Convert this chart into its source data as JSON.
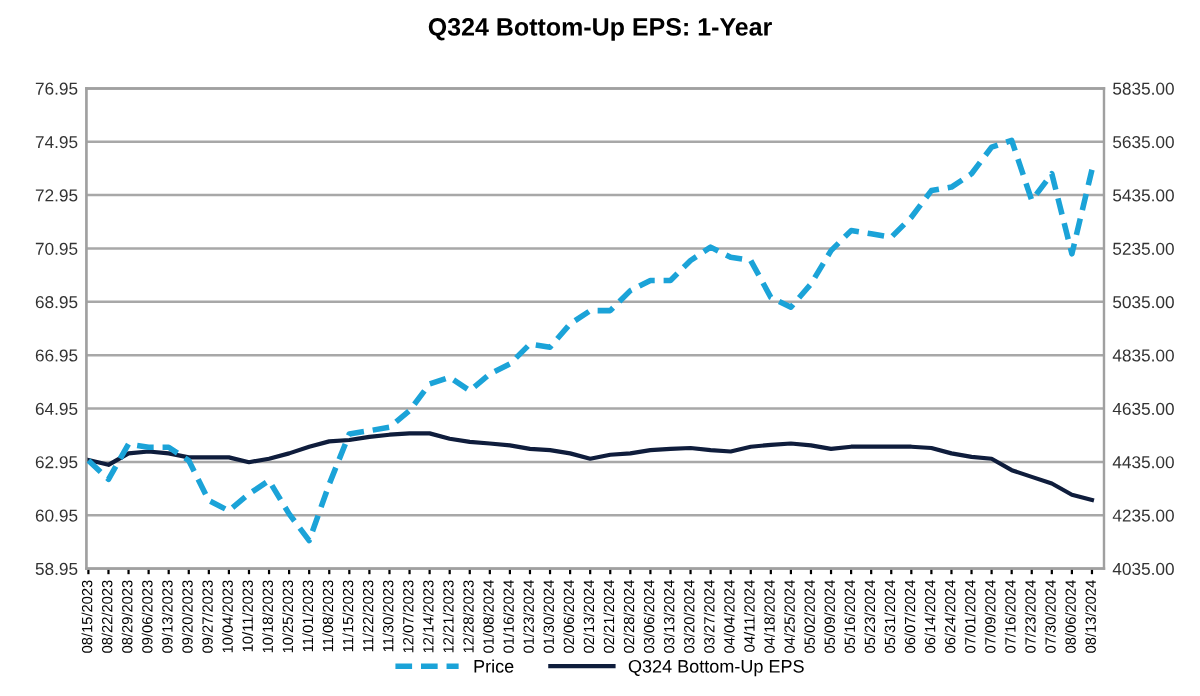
{
  "chart_data": {
    "type": "line",
    "title": "Q324 Bottom-Up EPS: 1-Year",
    "categories": [
      "08/15/2023",
      "08/22/2023",
      "08/29/2023",
      "09/06/2023",
      "09/13/2023",
      "09/20/2023",
      "09/27/2023",
      "10/04/2023",
      "10/11/2023",
      "10/18/2023",
      "10/25/2023",
      "11/01/2023",
      "11/08/2023",
      "11/15/2023",
      "11/22/2023",
      "11/30/2023",
      "12/07/2023",
      "12/14/2023",
      "12/21/2023",
      "12/28/2023",
      "01/08/2024",
      "01/16/2024",
      "01/23/2024",
      "01/30/2024",
      "02/06/2024",
      "02/13/2024",
      "02/21/2024",
      "02/28/2024",
      "03/06/2024",
      "03/13/2024",
      "03/20/2024",
      "03/27/2024",
      "04/04/2024",
      "04/11/2024",
      "04/18/2024",
      "04/25/2024",
      "05/02/2024",
      "05/09/2024",
      "05/16/2024",
      "05/23/2024",
      "05/31/2024",
      "06/07/2024",
      "06/14/2024",
      "06/24/2024",
      "07/01/2024",
      "07/09/2024",
      "07/16/2024",
      "07/23/2024",
      "07/30/2024",
      "08/06/2024",
      "08/13/2024"
    ],
    "series": [
      {
        "name": "Price",
        "color": "#1ba3d8",
        "axis": "y2",
        "line_style": "dashed",
        "values": [
          4440,
          4370,
          4502,
          4490,
          4490,
          4440,
          4290,
          4252,
          4315,
          4365,
          4240,
          4140,
          4352,
          4540,
          4552,
          4565,
          4627,
          4727,
          4752,
          4702,
          4765,
          4802,
          4877,
          4865,
          4952,
          5002,
          5002,
          5077,
          5115,
          5115,
          5190,
          5240,
          5202,
          5190,
          5052,
          5015,
          5102,
          5227,
          5302,
          5290,
          5277,
          5352,
          5452,
          5465,
          5515,
          5615,
          5640,
          5415,
          5515,
          5215,
          5530
        ]
      },
      {
        "name": "Q324 Bottom-Up EPS",
        "color": "#0f1d3c",
        "axis": "y",
        "line_style": "solid",
        "values": [
          63.02,
          62.84,
          63.27,
          63.34,
          63.27,
          63.12,
          63.12,
          63.12,
          62.94,
          63.07,
          63.27,
          63.52,
          63.72,
          63.77,
          63.89,
          63.97,
          64.02,
          64.02,
          63.82,
          63.7,
          63.64,
          63.57,
          63.44,
          63.39,
          63.27,
          63.07,
          63.22,
          63.27,
          63.39,
          63.44,
          63.47,
          63.39,
          63.34,
          63.52,
          63.59,
          63.64,
          63.57,
          63.44,
          63.52,
          63.52,
          63.52,
          63.52,
          63.47,
          63.27,
          63.14,
          63.07,
          62.64,
          62.39,
          62.14,
          61.72,
          61.52
        ]
      }
    ],
    "ylim": [
      58.95,
      76.95
    ],
    "yticks": [
      58.95,
      60.95,
      62.95,
      64.95,
      66.95,
      68.95,
      70.95,
      72.95,
      74.95,
      76.95
    ],
    "y2lim": [
      4035,
      5835
    ],
    "y2ticks": [
      {
        "value": 4035,
        "label": "4035.00"
      },
      {
        "value": 4235,
        "label": "4235.00"
      },
      {
        "value": 4435,
        "label": "4435.00"
      },
      {
        "value": 4635,
        "label": "4635.00"
      },
      {
        "value": 4835,
        "label": "4835.00"
      },
      {
        "value": 5035,
        "label": "5035.00"
      },
      {
        "value": 5235,
        "label": "5235.00"
      },
      {
        "value": 5435,
        "label": "5435.00"
      },
      {
        "value": 5635,
        "label": "5635.00"
      },
      {
        "value": 5835,
        "label": "5835.00"
      }
    ],
    "grid": "y",
    "legend": "bottom",
    "marker": "none"
  }
}
